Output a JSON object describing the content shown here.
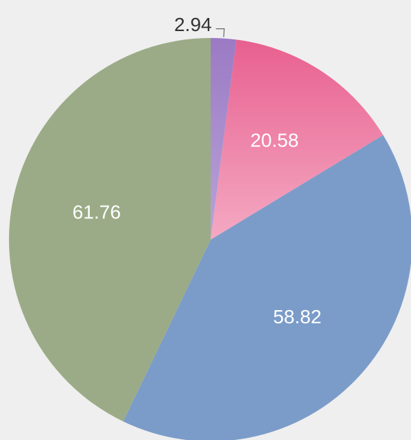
{
  "chart_data": {
    "type": "pie",
    "title": "",
    "start_angle_deg": 0,
    "direction": "clockwise",
    "slices": [
      {
        "label": "2.94",
        "value": 2.94,
        "color": "#9b7ac4",
        "gradient_to": "#b9a4d8",
        "label_color": "#333333",
        "label_position": "outside"
      },
      {
        "label": "20.58",
        "value": 20.58,
        "color": "#e8608f",
        "gradient_to": "#f4a9c3",
        "label_color": "#ffffff",
        "label_position": "inside"
      },
      {
        "label": "58.82",
        "value": 58.82,
        "color": "#7b9cc9",
        "gradient_to": "#7b9cc9",
        "label_color": "#ffffff",
        "label_position": "inside"
      },
      {
        "label": "61.76",
        "value": 61.76,
        "color": "#9bab87",
        "gradient_to": "#9bab87",
        "label_color": "#ffffff",
        "label_position": "inside"
      }
    ]
  }
}
